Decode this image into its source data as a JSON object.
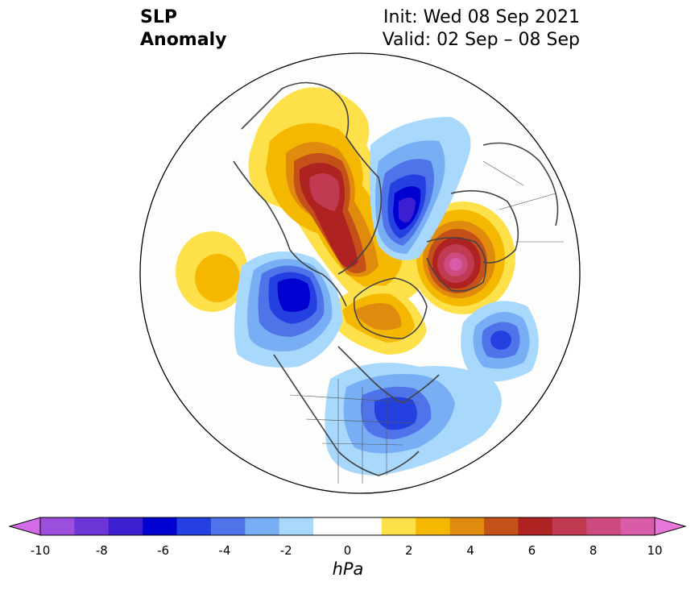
{
  "title": {
    "line1": "SLP",
    "line2": "Anomaly",
    "init": "Init: Wed 08 Sep 2021",
    "valid": "Valid: 02 Sep – 08 Sep"
  },
  "colorbar": {
    "unit": "hPa",
    "ticks": [
      "-10",
      "-8",
      "-6",
      "-4",
      "-2",
      "0",
      "2",
      "4",
      "6",
      "8",
      "10"
    ],
    "colors": [
      "#d36be8",
      "#9b4fdc",
      "#6b35d8",
      "#3b1fd0",
      "#0000d0",
      "#2540e0",
      "#4f74ea",
      "#78aef4",
      "#a8d8fc",
      "#ffffff",
      "#ffffff",
      "#fde04a",
      "#f4b800",
      "#e08a0e",
      "#c4501a",
      "#ae2222",
      "#c03a52",
      "#cc4a7e",
      "#d85ca8",
      "#e676d8"
    ]
  },
  "map": {
    "projection": "north-polar-stereographic",
    "features": [
      "continent outlines",
      "country borders",
      "US state borders"
    ]
  }
}
